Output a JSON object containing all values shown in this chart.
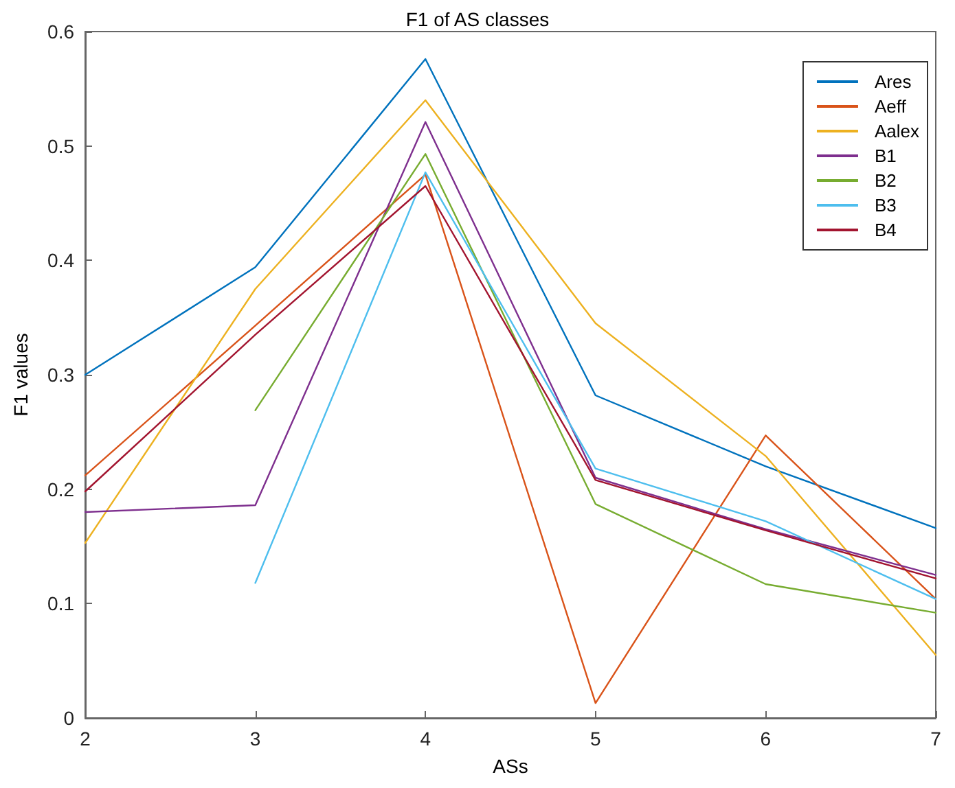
{
  "chart_data": {
    "type": "line",
    "title": "F1 of AS classes",
    "xlabel": "ASs",
    "ylabel": "F1 values",
    "x": [
      2,
      3,
      4,
      5,
      6,
      7
    ],
    "xlim": [
      2,
      7
    ],
    "xticks": [
      2,
      3,
      4,
      5,
      6,
      7
    ],
    "ylim": [
      0,
      0.6
    ],
    "yticks": [
      0,
      0.1,
      0.2,
      0.3,
      0.4,
      0.5,
      0.6
    ],
    "grid": false,
    "legend": "top right",
    "marker": "none",
    "line_style": "solid",
    "series": [
      {
        "name": "Ares",
        "color": "#0072bd",
        "values": [
          0.3,
          0.394,
          0.576,
          0.282,
          0.22,
          0.166
        ]
      },
      {
        "name": "Aeff",
        "color": "#d95319",
        "values": [
          0.212,
          0.343,
          0.475,
          0.013,
          0.247,
          0.104
        ]
      },
      {
        "name": "Aalex",
        "color": "#edb120",
        "values": [
          0.153,
          0.375,
          0.54,
          0.345,
          0.229,
          0.055
        ]
      },
      {
        "name": "B1",
        "color": "#7e2f8e",
        "values": [
          0.18,
          0.186,
          0.521,
          0.21,
          0.165,
          0.125
        ]
      },
      {
        "name": "B2",
        "color": "#77ac30",
        "values": [
          null,
          0.269,
          0.493,
          0.187,
          0.117,
          0.092
        ]
      },
      {
        "name": "B3",
        "color": "#4dbeee",
        "values": [
          null,
          0.118,
          0.477,
          0.218,
          0.172,
          0.104
        ]
      },
      {
        "name": "B4",
        "color": "#a2142f",
        "values": [
          0.198,
          0.335,
          0.465,
          0.208,
          0.164,
          0.122
        ]
      }
    ]
  }
}
